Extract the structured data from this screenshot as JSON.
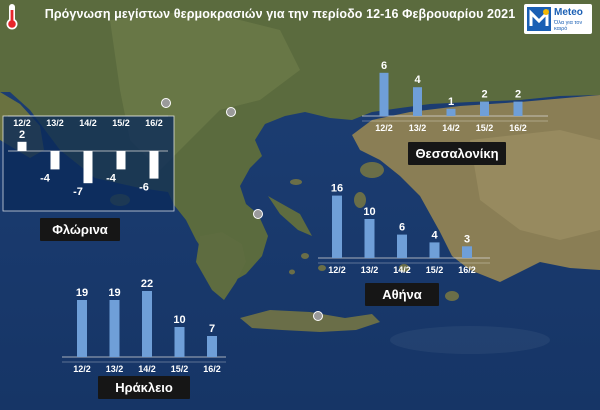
{
  "title": "Πρόγνωση μεγίστων θερμοκρασιών για την περίοδο 12-16 Φεβρουαρίου 2021",
  "logo": {
    "name": "Meteo",
    "tagline": "Όλα για τον καιρό"
  },
  "icons": {
    "thermometer": "thermometer-icon",
    "logo": "meteo-logo-icon"
  },
  "colors": {
    "bar": "#6f9fd8",
    "bar_negative": "#ffffff",
    "label_bg": "#161616"
  },
  "chart_data": [
    {
      "type": "bar",
      "city": "Θεσσαλονίκη",
      "categories": [
        "12/2",
        "13/2",
        "14/2",
        "15/2",
        "16/2"
      ],
      "values": [
        6,
        4,
        1,
        2,
        2
      ]
    },
    {
      "type": "bar",
      "city": "Φλώρινα",
      "categories": [
        "12/2",
        "13/2",
        "14/2",
        "15/2",
        "16/2"
      ],
      "values": [
        2,
        -4,
        -7,
        -4,
        -6
      ]
    },
    {
      "type": "bar",
      "city": "Αθήνα",
      "categories": [
        "12/2",
        "13/2",
        "14/2",
        "15/2",
        "16/2"
      ],
      "values": [
        16,
        10,
        6,
        4,
        3
      ]
    },
    {
      "type": "bar",
      "city": "Ηράκλειο",
      "categories": [
        "12/2",
        "13/2",
        "14/2",
        "15/2",
        "16/2"
      ],
      "values": [
        19,
        19,
        22,
        10,
        7
      ]
    }
  ]
}
